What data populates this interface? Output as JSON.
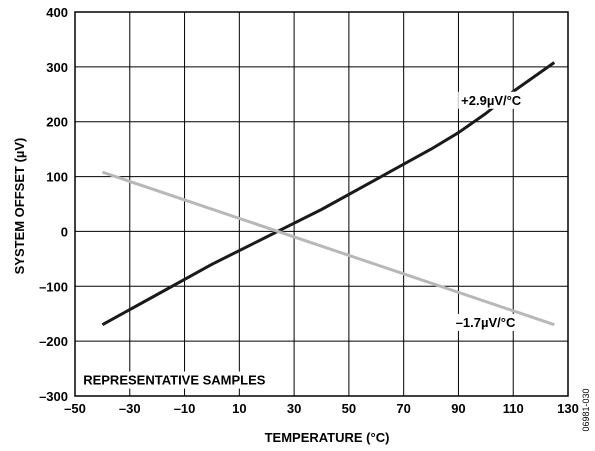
{
  "chart_data": {
    "type": "line",
    "xlabel": "TEMPERATURE (°C)",
    "ylabel": "SYSTEM OFFSET (µV)",
    "xlim": [
      -50,
      130
    ],
    "ylim": [
      -300,
      400
    ],
    "x_ticks": [
      -50,
      -30,
      -10,
      10,
      30,
      50,
      70,
      90,
      110,
      130
    ],
    "x_tick_labels": [
      "–50",
      "–30",
      "–10",
      "10",
      "30",
      "50",
      "70",
      "90",
      "110",
      "130"
    ],
    "y_ticks": [
      -300,
      -200,
      -100,
      0,
      100,
      200,
      300,
      400
    ],
    "y_tick_labels": [
      "–300",
      "–200",
      "–100",
      "0",
      "100",
      "200",
      "300",
      "400"
    ],
    "grid": true,
    "series": [
      {
        "color": "#1a1a1a",
        "x": [
          -40,
          -20,
          0,
          20,
          30,
          40,
          60,
          80,
          90,
          100,
          110,
          125
        ],
        "y": [
          -170,
          -115,
          -60,
          -10,
          15,
          40,
          95,
          150,
          180,
          215,
          255,
          308
        ]
      },
      {
        "color": "#b8b8b8",
        "x": [
          -40,
          125
        ],
        "y": [
          108,
          -170
        ]
      }
    ],
    "annotations": [
      {
        "text": "+2.9µV/°C",
        "x": 91,
        "y": 240
      },
      {
        "text": "–1.7µV/°C",
        "x": 89,
        "y": -165
      },
      {
        "text": "REPRESENTATIVE SAMPLES",
        "x": -47,
        "y": -270
      }
    ],
    "figure_id": "06981-030"
  }
}
